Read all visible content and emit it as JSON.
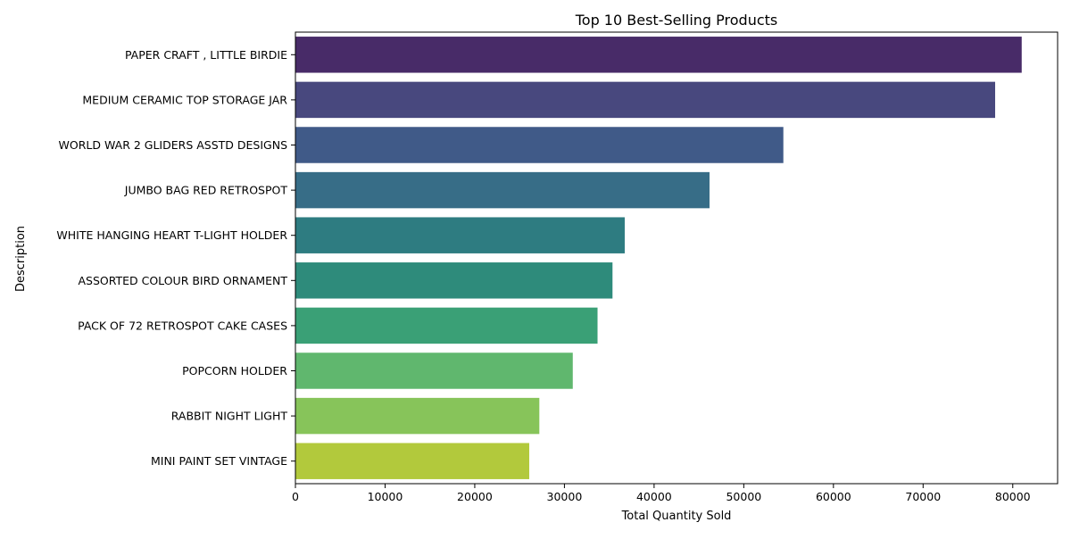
{
  "chart_data": {
    "type": "bar",
    "orientation": "horizontal",
    "title": "Top 10 Best-Selling Products",
    "xlabel": "Total Quantity Sold",
    "ylabel": "Description",
    "xlim": [
      0,
      85000
    ],
    "xticks": [
      0,
      10000,
      20000,
      30000,
      40000,
      50000,
      60000,
      70000,
      80000
    ],
    "grid": false,
    "legend": "none",
    "categories": [
      "PAPER CRAFT , LITTLE BIRDIE",
      "MEDIUM CERAMIC TOP STORAGE JAR",
      "WORLD WAR 2 GLIDERS ASSTD DESIGNS",
      "JUMBO BAG RED RETROSPOT",
      "WHITE HANGING HEART T-LIGHT HOLDER",
      "ASSORTED COLOUR BIRD ORNAMENT",
      "PACK OF 72 RETROSPOT CAKE CASES",
      "POPCORN HOLDER",
      "RABBIT NIGHT LIGHT",
      "MINI PAINT SET VINTAGE "
    ],
    "values": [
      80995,
      78033,
      54415,
      46181,
      36725,
      35362,
      33693,
      30931,
      27202,
      26076
    ],
    "colors": [
      "#482b68",
      "#48487e",
      "#405a88",
      "#376d87",
      "#2e7c81",
      "#2e8b7b",
      "#3aa076",
      "#60b76e",
      "#87c45a",
      "#b2c93c"
    ]
  }
}
